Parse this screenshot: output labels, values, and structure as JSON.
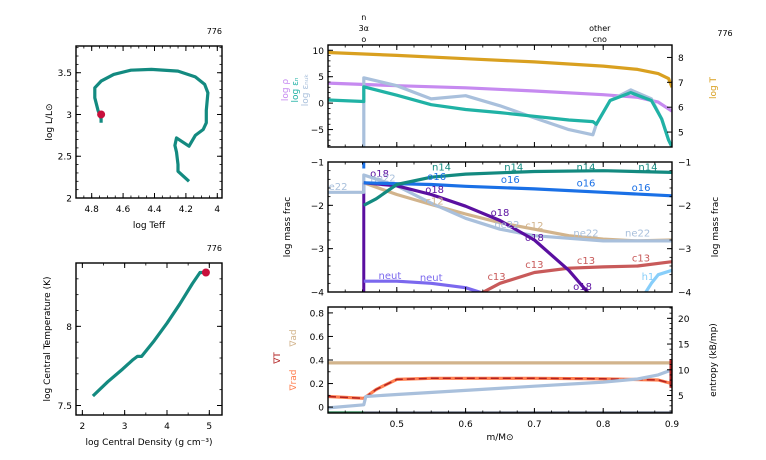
{
  "chart_data": [
    {
      "id": "hr",
      "type": "line",
      "title": "",
      "corner_label": "776",
      "xlabel": "log Teff",
      "ylabel": "log L/L⊙",
      "xlim": [
        4.9,
        3.97
      ],
      "ylim": [
        2.0,
        3.82
      ],
      "xticks": [
        4.8,
        4.6,
        4.4,
        4.2,
        4.0
      ],
      "xtick_labels": [
        "4.8",
        "4.6",
        "4.4",
        "4.2",
        "4"
      ],
      "yticks": [
        2.0,
        2.5,
        3.0,
        3.5
      ],
      "ytick_labels": [
        "2",
        "2.5",
        "3",
        "3.5"
      ],
      "series": [
        {
          "name": "track",
          "color": "#138a80",
          "x": [
            4.18,
            4.25,
            4.25,
            4.26,
            4.27,
            4.26,
            4.18,
            4.14,
            4.09,
            4.07,
            4.07,
            4.06,
            4.08,
            4.14,
            4.25,
            4.42,
            4.55,
            4.66,
            4.74,
            4.78,
            4.78,
            4.76,
            4.74,
            4.74
          ],
          "y": [
            2.2,
            2.32,
            2.4,
            2.55,
            2.63,
            2.72,
            2.62,
            2.75,
            2.82,
            2.9,
            3.05,
            3.26,
            3.36,
            3.45,
            3.52,
            3.54,
            3.53,
            3.48,
            3.4,
            3.32,
            3.2,
            3.05,
            2.95,
            2.9
          ]
        }
      ],
      "marker": {
        "x": 4.74,
        "y": 3.0,
        "color": "#c8103c"
      }
    },
    {
      "id": "rhoT",
      "type": "line",
      "corner_label": "776",
      "xlabel": "log Central Density (g cm⁻³)",
      "ylabel": "log Central Temperature (K)",
      "xlim": [
        1.85,
        5.3
      ],
      "ylim": [
        7.44,
        8.4
      ],
      "xticks": [
        2,
        3,
        4,
        5
      ],
      "xtick_labels": [
        "2",
        "3",
        "4",
        "5"
      ],
      "yticks": [
        7.5,
        8.0
      ],
      "ytick_labels": [
        "7.5",
        "8"
      ],
      "series": [
        {
          "name": "track",
          "color": "#138a80",
          "x": [
            2.25,
            2.6,
            2.95,
            3.2,
            3.3,
            3.4,
            3.7,
            4.0,
            4.3,
            4.6,
            4.78,
            4.92
          ],
          "y": [
            7.56,
            7.65,
            7.73,
            7.79,
            7.81,
            7.81,
            7.91,
            8.02,
            8.14,
            8.27,
            8.34,
            8.34
          ]
        }
      ],
      "marker": {
        "x": 4.92,
        "y": 8.34,
        "color": "#c8103c"
      }
    },
    {
      "id": "profile-top",
      "type": "line",
      "corner_label": "776",
      "top_annotations": [
        {
          "x": 0.452,
          "lines": [
            "n",
            "3α",
            "o"
          ]
        },
        {
          "x": 0.795,
          "lines": [
            "other",
            "cno"
          ]
        }
      ],
      "xlim": [
        0.4,
        0.9
      ],
      "ylim_left": [
        -8.3,
        11
      ],
      "ylim_right": [
        4.4,
        8.5
      ],
      "yticks_left": [
        -5,
        0,
        5,
        10
      ],
      "ytick_labels_left": [
        "−5",
        "0",
        "5",
        "10"
      ],
      "yticks_right": [
        5,
        6,
        7,
        8
      ],
      "ytick_labels_right": [
        "5",
        "6",
        "7",
        "8"
      ],
      "ylabels_left": [
        {
          "text": "log ρ",
          "color": "#c68af0"
        },
        {
          "text": "log εₙ",
          "color": "#20b2a5"
        },
        {
          "text": "log εₙᵤₖ",
          "color": "#a9c0dc"
        }
      ],
      "ylabel_right": {
        "text": "log T",
        "color": "#d9a020"
      },
      "series": [
        {
          "name": "log T",
          "color": "#d9a020",
          "axis": "right",
          "x": [
            0.4,
            0.5,
            0.6,
            0.7,
            0.8,
            0.85,
            0.88,
            0.895,
            0.9
          ],
          "y": [
            8.2,
            8.08,
            7.95,
            7.82,
            7.65,
            7.52,
            7.35,
            7.15,
            6.8
          ]
        },
        {
          "name": "log rho",
          "color": "#c68af0",
          "axis": "left",
          "x": [
            0.4,
            0.5,
            0.6,
            0.7,
            0.8,
            0.85,
            0.88,
            0.9
          ],
          "y": [
            3.8,
            3.3,
            2.9,
            2.3,
            1.6,
            1.1,
            0.2,
            -1.5
          ]
        },
        {
          "name": "log eps_nuc",
          "color": "#a9c0dc",
          "axis": "left",
          "x": [
            0.452,
            0.452,
            0.5,
            0.55,
            0.6,
            0.65,
            0.7,
            0.75,
            0.785,
            0.79,
            0.81,
            0.84,
            0.87,
            0.885,
            0.895,
            0.9
          ],
          "y": [
            -8.3,
            4.8,
            3.3,
            0.8,
            1.4,
            -0.5,
            -2.8,
            -5.0,
            -6.0,
            -4.0,
            0.5,
            2.5,
            0.8,
            -3.0,
            -7.0,
            -8.3
          ]
        },
        {
          "name": "log eps_nuc_net",
          "color": "#20b2a5",
          "axis": "left",
          "x": [
            0.4,
            0.452,
            0.452,
            0.5,
            0.55,
            0.6,
            0.65,
            0.7,
            0.75,
            0.785,
            0.79,
            0.81,
            0.84,
            0.87,
            0.885,
            0.895,
            0.9
          ],
          "y": [
            0.6,
            0.3,
            3.1,
            1.5,
            -0.3,
            -1.2,
            -1.8,
            -2.5,
            -3.2,
            -3.5,
            -4.0,
            0.5,
            2.0,
            0.5,
            -3.0,
            -7.0,
            -8.3
          ]
        }
      ]
    },
    {
      "id": "profile-mid",
      "type": "line",
      "xlim": [
        0.4,
        0.9
      ],
      "ylim": [
        -4,
        -1
      ],
      "ylabel": "log mass frac",
      "yticks": [
        -4,
        -3,
        -2,
        -1
      ],
      "ytick_labels": [
        "−4",
        "−3",
        "−2",
        "−1"
      ],
      "series": [
        {
          "name": "n14",
          "color": "#138a80",
          "x": [
            0.452,
            0.47,
            0.5,
            0.55,
            0.6,
            0.7,
            0.8,
            0.9
          ],
          "y": [
            -2.0,
            -1.85,
            -1.52,
            -1.35,
            -1.28,
            -1.22,
            -1.2,
            -1.24
          ],
          "labels": [
            {
              "x": 0.565,
              "y": -1.2
            },
            {
              "x": 0.67,
              "y": -1.2
            },
            {
              "x": 0.775,
              "y": -1.2
            },
            {
              "x": 0.865,
              "y": -1.2
            }
          ]
        },
        {
          "name": "o16",
          "color": "#1a70e6",
          "x": [
            0.452,
            0.5,
            0.55,
            0.6,
            0.7,
            0.8,
            0.9
          ],
          "y": [
            -1.48,
            -1.5,
            -1.52,
            -1.56,
            -1.62,
            -1.7,
            -1.78
          ],
          "labels": [
            {
              "x": 0.558,
              "y": -1.42
            },
            {
              "x": 0.665,
              "y": -1.48
            },
            {
              "x": 0.775,
              "y": -1.57
            },
            {
              "x": 0.855,
              "y": -1.67
            }
          ]
        },
        {
          "name": "o18",
          "color": "#5a0fa0",
          "x": [
            0.452,
            0.5,
            0.55,
            0.6,
            0.65,
            0.7,
            0.75,
            0.78
          ],
          "y": [
            -1.48,
            -1.55,
            -1.75,
            -2.02,
            -2.35,
            -2.8,
            -3.5,
            -4.05
          ],
          "labels": [
            {
              "x": 0.475,
              "y": -1.35
            },
            {
              "x": 0.555,
              "y": -1.72
            },
            {
              "x": 0.65,
              "y": -2.25
            },
            {
              "x": 0.7,
              "y": -2.82
            },
            {
              "x": 0.77,
              "y": -3.95
            }
          ]
        },
        {
          "name": "c12",
          "color": "#d2b48c",
          "x": [
            0.452,
            0.5,
            0.55,
            0.6,
            0.65,
            0.7,
            0.75,
            0.8,
            0.85,
            0.9
          ],
          "y": [
            -1.48,
            -1.75,
            -1.98,
            -2.2,
            -2.4,
            -2.55,
            -2.7,
            -2.78,
            -2.82,
            -2.8
          ],
          "labels": [
            {
              "x": 0.555,
              "y": -1.98
            },
            {
              "x": 0.7,
              "y": -2.55
            }
          ]
        },
        {
          "name": "ne22",
          "color": "#a9c0dc",
          "x": [
            0.4,
            0.452,
            0.452,
            0.5,
            0.55,
            0.6,
            0.65,
            0.7,
            0.8,
            0.9
          ],
          "y": [
            -1.7,
            -1.7,
            -1.3,
            -1.55,
            -1.95,
            -2.3,
            -2.55,
            -2.7,
            -2.82,
            -2.82
          ],
          "labels": [
            {
              "x": 0.41,
              "y": -1.65
            },
            {
              "x": 0.48,
              "y": -1.45
            },
            {
              "x": 0.66,
              "y": -2.52
            },
            {
              "x": 0.775,
              "y": -2.72
            },
            {
              "x": 0.85,
              "y": -2.72
            }
          ]
        },
        {
          "name": "c13",
          "color": "#c85a5a",
          "x": [
            0.62,
            0.65,
            0.7,
            0.75,
            0.8,
            0.85,
            0.9
          ],
          "y": [
            -4.05,
            -3.8,
            -3.55,
            -3.45,
            -3.42,
            -3.4,
            -3.3
          ],
          "labels": [
            {
              "x": 0.645,
              "y": -3.72
            },
            {
              "x": 0.7,
              "y": -3.45
            },
            {
              "x": 0.775,
              "y": -3.35
            },
            {
              "x": 0.855,
              "y": -3.3
            }
          ]
        },
        {
          "name": "neut",
          "color": "#7b68ee",
          "x": [
            0.452,
            0.5,
            0.55,
            0.6,
            0.63
          ],
          "y": [
            -3.75,
            -3.75,
            -3.8,
            -3.9,
            -4.05
          ],
          "labels": [
            {
              "x": 0.49,
              "y": -3.7
            },
            {
              "x": 0.55,
              "y": -3.75
            }
          ]
        },
        {
          "name": "h1",
          "color": "#87cefa",
          "x": [
            0.86,
            0.87,
            0.88,
            0.9
          ],
          "y": [
            -4.05,
            -3.8,
            -3.6,
            -3.5
          ],
          "labels": [
            {
              "x": 0.865,
              "y": -3.72
            }
          ]
        }
      ],
      "vertical_marks": [
        {
          "x": 0.452,
          "color": "#5a0fa0"
        },
        {
          "x": 0.452,
          "color": "#1a70e6",
          "from": -1,
          "to": -1.15
        }
      ]
    },
    {
      "id": "profile-bot",
      "type": "line",
      "xlim": [
        0.4,
        0.9
      ],
      "xlabel": "m/M⊙",
      "xticks": [
        0.5,
        0.6,
        0.7,
        0.8,
        0.9
      ],
      "xtick_labels": [
        "0.5",
        "0.6",
        "0.7",
        "0.8",
        "0.9"
      ],
      "ylim_left": [
        -0.05,
        0.85
      ],
      "yticks_left": [
        0,
        0.2,
        0.4,
        0.6,
        0.8
      ],
      "ytick_labels_left": [
        "0",
        "0.2",
        "0.4",
        "0.6",
        "0.8"
      ],
      "ylim_right": [
        1.6,
        22.2
      ],
      "yticks_right": [
        5,
        10,
        15,
        20
      ],
      "ytick_labels_right": [
        "5",
        "10",
        "15",
        "20"
      ],
      "ylabels_left": [
        {
          "text": "∇ad",
          "color": "#d2b48c"
        },
        {
          "text": "∇T",
          "color": "#b22222"
        },
        {
          "text": "∇rad",
          "color": "#ff7f50"
        }
      ],
      "ylabel_right": {
        "text": "entropy (kB/mp)",
        "color": "#000000"
      },
      "series": [
        {
          "name": "grad_ad",
          "color": "#d2b48c",
          "axis": "left",
          "x": [
            0.4,
            0.9
          ],
          "y": [
            0.375,
            0.375
          ]
        },
        {
          "name": "grad_rad",
          "color": "#ff7f50",
          "axis": "left",
          "x": [
            0.4,
            0.452,
            0.47,
            0.5,
            0.55,
            0.6,
            0.7,
            0.8,
            0.88,
            0.9
          ],
          "y": [
            0.09,
            0.075,
            0.15,
            0.235,
            0.245,
            0.245,
            0.245,
            0.24,
            0.23,
            0.2
          ]
        },
        {
          "name": "grad_T",
          "color": "#b22222",
          "axis": "left",
          "x": [
            0.4,
            0.452,
            0.47,
            0.5,
            0.55,
            0.6,
            0.7,
            0.8,
            0.88,
            0.9
          ],
          "y": [
            0.09,
            0.075,
            0.15,
            0.235,
            0.245,
            0.245,
            0.245,
            0.24,
            0.23,
            0.2
          ]
        },
        {
          "name": "entropy",
          "color": "#a9c0dc",
          "axis": "right",
          "x": [
            0.4,
            0.452,
            0.455,
            0.5,
            0.6,
            0.7,
            0.8,
            0.85,
            0.88,
            0.9
          ],
          "y": [
            2.6,
            3.2,
            4.8,
            5.2,
            6.0,
            6.8,
            7.6,
            8.2,
            9.0,
            10.0
          ]
        },
        {
          "name": "base",
          "color": "#5a6478",
          "axis": "left",
          "x": [
            0.4,
            0.9
          ],
          "y": [
            -0.05,
            -0.05
          ]
        },
        {
          "name": "base-green",
          "color": "#2e8b57",
          "axis": "left",
          "x": [
            0.4,
            0.452
          ],
          "y": [
            -0.05,
            -0.05
          ]
        }
      ]
    }
  ]
}
